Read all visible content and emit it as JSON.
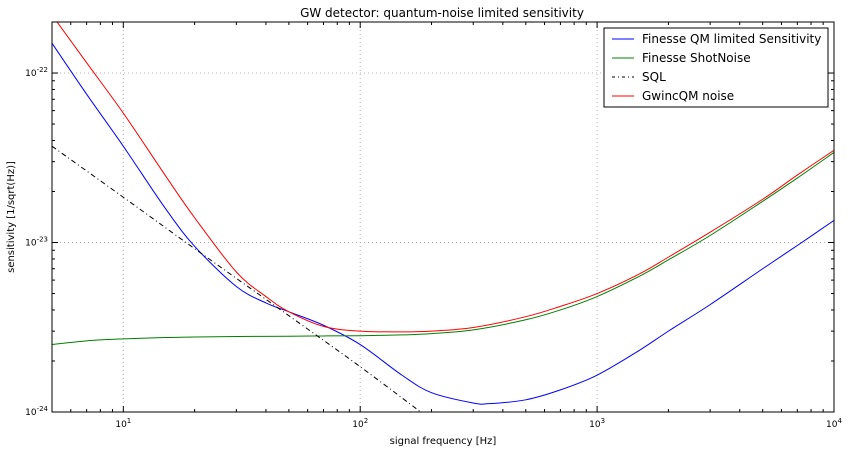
{
  "chart_data": {
    "type": "line",
    "title": "GW detector: quantum-noise limited sensitivity",
    "xlabel": "signal frequency [Hz]",
    "ylabel": "sensitivity [1/sqrt(Hz)]",
    "xscale": "log",
    "yscale": "log",
    "xlim": [
      5,
      10000
    ],
    "ylim": [
      1e-24,
      2e-22
    ],
    "grid": true,
    "legend_position": "top-right",
    "x_tick_labels": [
      {
        "value": 10,
        "base": "10",
        "exp": "1"
      },
      {
        "value": 100,
        "base": "10",
        "exp": "2"
      },
      {
        "value": 1000,
        "base": "10",
        "exp": "3"
      },
      {
        "value": 10000,
        "base": "10",
        "exp": "4"
      }
    ],
    "y_tick_labels": [
      {
        "value": 1e-24,
        "base": "10",
        "exp": "-24"
      },
      {
        "value": 1e-23,
        "base": "10",
        "exp": "-23"
      },
      {
        "value": 1e-22,
        "base": "10",
        "exp": "-22"
      }
    ],
    "series": [
      {
        "name": "Finesse QM limited Sensitivity",
        "color": "#0000ff",
        "style": "solid",
        "x": [
          5,
          7,
          10,
          15,
          20,
          30,
          40,
          50,
          70,
          100,
          150,
          200,
          300,
          350,
          500,
          700,
          1000,
          1500,
          2000,
          3000,
          5000,
          7000,
          10000
        ],
        "y": [
          1.5e-22,
          7.5e-23,
          3.7e-23,
          1.6e-23,
          9.5e-24,
          5.5e-24,
          4.4e-24,
          3.9e-24,
          3.25e-24,
          2.5e-24,
          1.65e-24,
          1.3e-24,
          1.13e-24,
          1.12e-24,
          1.18e-24,
          1.35e-24,
          1.65e-24,
          2.3e-24,
          3e-24,
          4.3e-24,
          7e-24,
          9.6e-24,
          1.35e-23
        ]
      },
      {
        "name": "Finesse ShotNoise",
        "color": "#008000",
        "style": "solid",
        "x": [
          5,
          7,
          10,
          15,
          20,
          30,
          50,
          70,
          100,
          150,
          200,
          300,
          500,
          700,
          1000,
          1500,
          2000,
          3000,
          5000,
          7000,
          10000
        ],
        "y": [
          2.5e-24,
          2.63e-24,
          2.7e-24,
          2.75e-24,
          2.77e-24,
          2.79e-24,
          2.8e-24,
          2.81e-24,
          2.82e-24,
          2.85e-24,
          2.9e-24,
          3.05e-24,
          3.5e-24,
          4e-24,
          4.8e-24,
          6.3e-24,
          7.9e-24,
          1.1e-23,
          1.75e-23,
          2.4e-23,
          3.4e-23
        ]
      },
      {
        "name": "SQL",
        "color": "#000000",
        "style": "dashdot",
        "x": [
          5,
          10,
          20,
          50,
          100,
          180
        ],
        "y": [
          3.7e-23,
          1.85e-23,
          9.2e-24,
          3.7e-24,
          1.85e-24,
          1e-24
        ]
      },
      {
        "name": "GwincQM noise",
        "color": "#ff0000",
        "style": "solid",
        "x": [
          5,
          7,
          10,
          15,
          20,
          30,
          40,
          50,
          70,
          100,
          150,
          200,
          300,
          500,
          700,
          1000,
          1500,
          2000,
          3000,
          5000,
          7000,
          10000
        ],
        "y": [
          2.2e-22,
          1.15e-22,
          5.8e-23,
          2.5e-23,
          1.4e-23,
          6.7e-24,
          4.8e-24,
          3.9e-24,
          3.2e-24,
          3e-24,
          2.97e-24,
          3e-24,
          3.15e-24,
          3.65e-24,
          4.2e-24,
          5e-24,
          6.5e-24,
          8.2e-24,
          1.15e-23,
          1.8e-23,
          2.5e-23,
          3.5e-23
        ]
      }
    ]
  }
}
